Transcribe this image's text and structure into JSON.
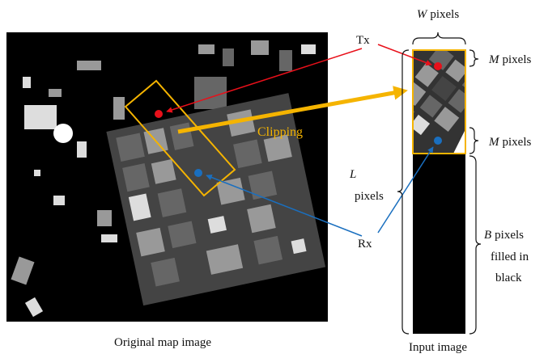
{
  "labels": {
    "w": {
      "symbol": "W",
      "unit": "pixels"
    },
    "tx": "Tx",
    "m_top": {
      "symbol": "M",
      "unit": "pixels"
    },
    "clipping": "Clipping",
    "m_bottom": {
      "symbol": "M",
      "unit": "pixels"
    },
    "l": {
      "symbol": "L",
      "unit": "pixels"
    },
    "rx": "Rx",
    "b": {
      "symbol": "B",
      "lines": [
        "pixels",
        "filled in",
        "black"
      ]
    }
  },
  "captions": {
    "original": "Original map image",
    "input": "Input image"
  }
}
